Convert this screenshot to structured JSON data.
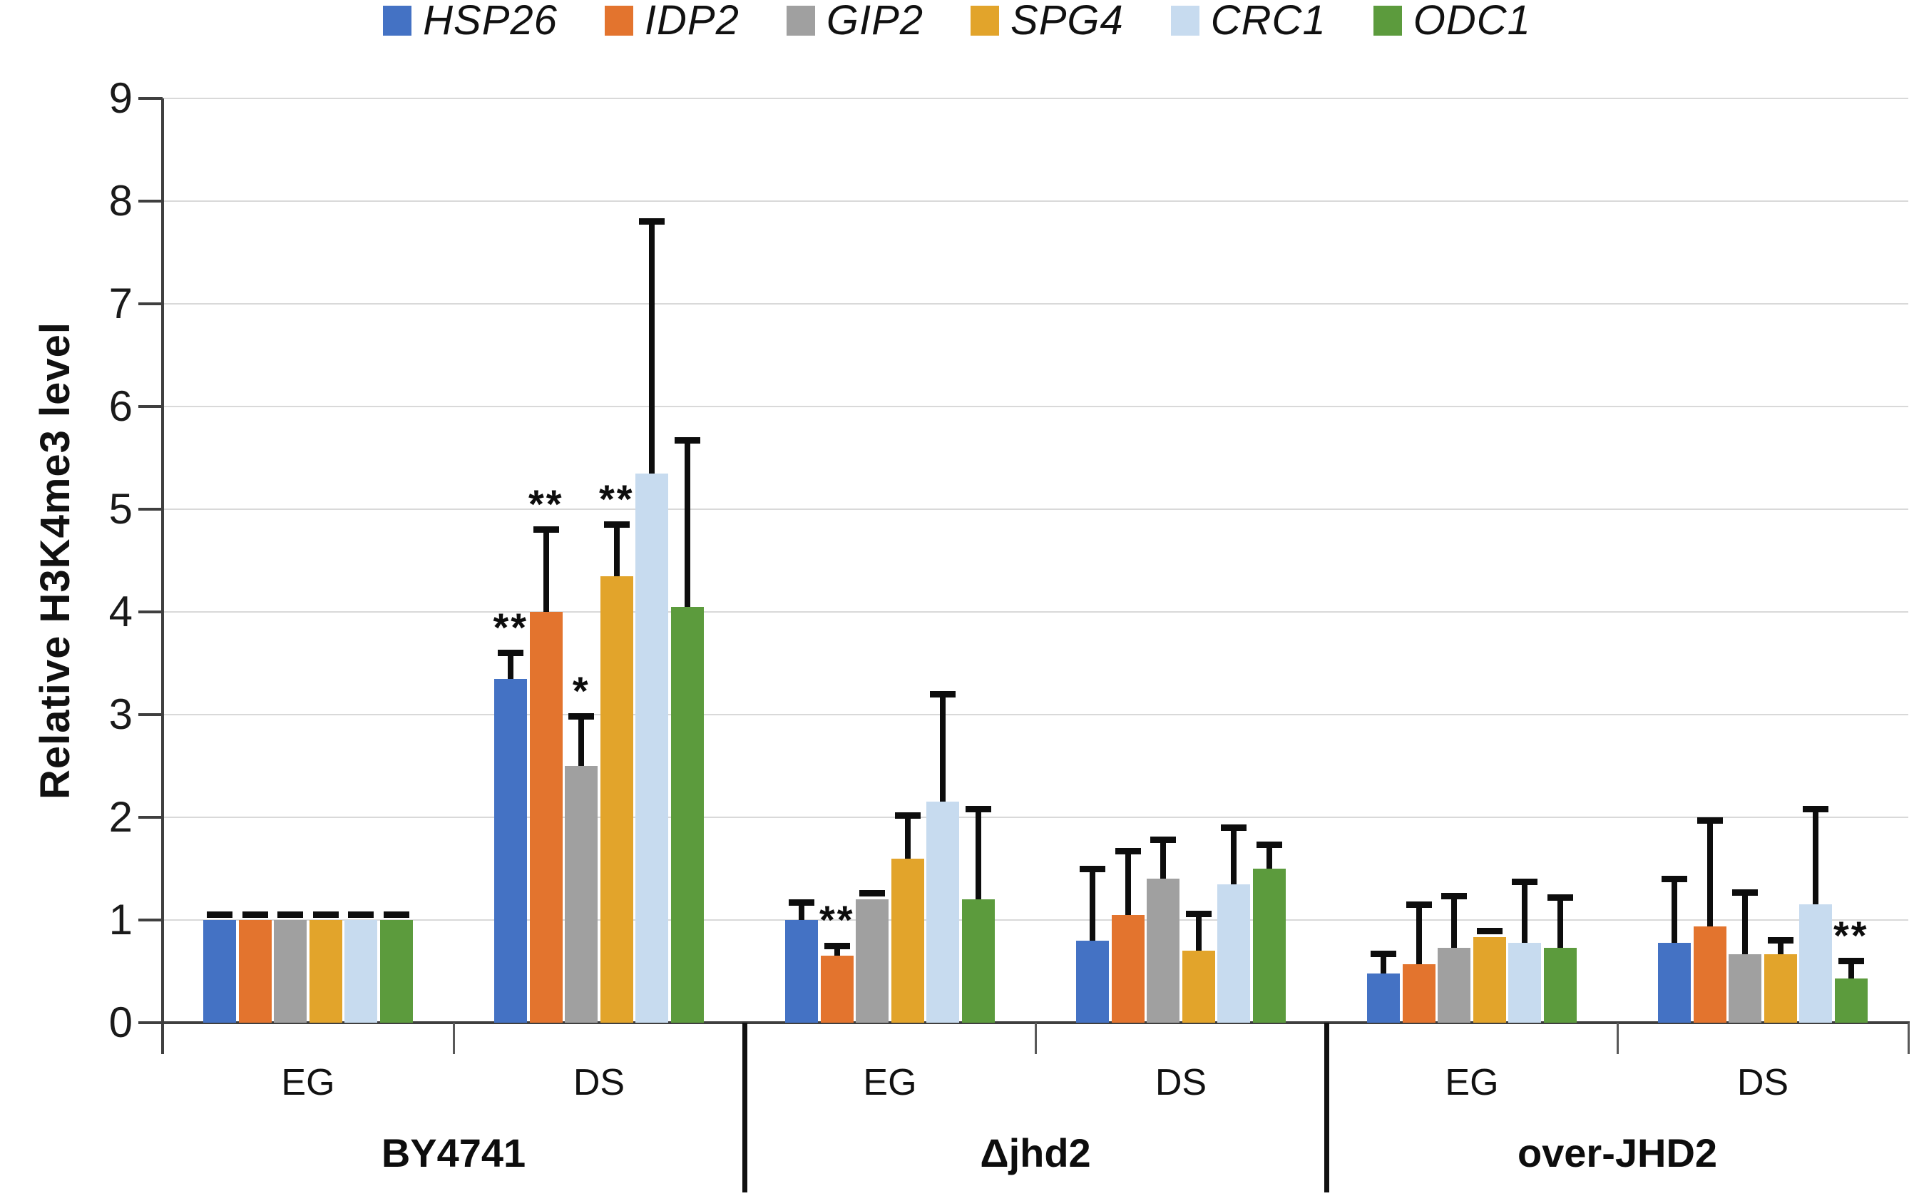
{
  "chart_data": {
    "type": "bar",
    "title": "",
    "ylabel": "Relative H3K4me3 level",
    "xlabel": "",
    "ylim": [
      0,
      9
    ],
    "yticks": [
      0,
      1,
      2,
      3,
      4,
      5,
      6,
      7,
      8,
      9
    ],
    "grid": true,
    "legend_position": "top",
    "series": [
      {
        "name": "HSP26",
        "color": "#4472C4"
      },
      {
        "name": "IDP2",
        "color": "#E3742E"
      },
      {
        "name": "GIP2",
        "color": "#A0A0A0"
      },
      {
        "name": "SPG4",
        "color": "#E2A42B"
      },
      {
        "name": "CRC1",
        "color": "#C7DBEF"
      },
      {
        "name": "ODC1",
        "color": "#5C9B3D"
      }
    ],
    "strains": [
      {
        "label": "BY4741",
        "conditions": [
          {
            "label": "EG",
            "values": [
              1.0,
              1.0,
              1.0,
              1.0,
              1.0,
              1.0
            ],
            "errors": [
              0.05,
              0.05,
              0.05,
              0.05,
              0.05,
              0.05
            ],
            "sig": [
              "",
              "",
              "",
              "",
              "",
              ""
            ]
          },
          {
            "label": "DS",
            "values": [
              3.35,
              4.0,
              2.5,
              4.35,
              5.35,
              4.05
            ],
            "errors": [
              0.25,
              0.8,
              0.48,
              0.5,
              2.45,
              1.62
            ],
            "sig": [
              "**",
              "**",
              "*",
              "**",
              "",
              ""
            ]
          }
        ]
      },
      {
        "label": "Δjhd2",
        "conditions": [
          {
            "label": "EG",
            "values": [
              1.0,
              0.65,
              1.2,
              1.6,
              2.15,
              1.2
            ],
            "errors": [
              0.17,
              0.1,
              0.06,
              0.42,
              1.05,
              0.88
            ],
            "sig": [
              "",
              "**",
              "",
              "",
              "",
              ""
            ]
          },
          {
            "label": "DS",
            "values": [
              0.8,
              1.05,
              1.4,
              0.7,
              1.35,
              1.5
            ],
            "errors": [
              0.7,
              0.62,
              0.38,
              0.36,
              0.55,
              0.23
            ],
            "sig": [
              "",
              "",
              "",
              "",
              "",
              ""
            ]
          }
        ]
      },
      {
        "label": "over-JHD2",
        "conditions": [
          {
            "label": "EG",
            "values": [
              0.48,
              0.57,
              0.73,
              0.83,
              0.78,
              0.73
            ],
            "errors": [
              0.19,
              0.58,
              0.5,
              0.06,
              0.59,
              0.49
            ],
            "sig": [
              "",
              "",
              "",
              "",
              "",
              ""
            ]
          },
          {
            "label": "DS",
            "values": [
              0.78,
              0.94,
              0.67,
              0.67,
              1.15,
              0.43
            ],
            "errors": [
              0.62,
              1.03,
              0.6,
              0.13,
              0.93,
              0.17
            ],
            "sig": [
              "",
              "",
              "",
              "",
              "",
              "**"
            ]
          }
        ]
      }
    ]
  }
}
